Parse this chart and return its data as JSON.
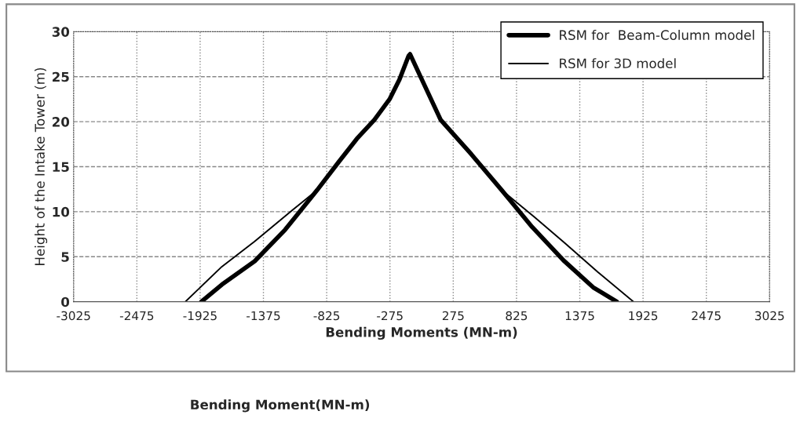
{
  "chart_data": {
    "type": "line",
    "xlabel": "Bending Moments (MN-m)",
    "ylabel": "Height of the Intake Tower (m)",
    "annotations": [
      "Bending Moment(MN-m)"
    ],
    "xlim": [
      -3025,
      3025
    ],
    "xticks": [
      -3025,
      -2475,
      -1925,
      -1375,
      -825,
      -275,
      275,
      825,
      1375,
      1925,
      2475,
      3025
    ],
    "ylim": [
      0,
      30
    ],
    "yticks": [
      0,
      5,
      10,
      15,
      20,
      25,
      30
    ],
    "grid": true,
    "legend": "top right",
    "marker": "none",
    "line_style": "solid",
    "series": [
      {
        "name": "RSM for  Beam-Column model",
        "color": "#000000",
        "x": [
          -1915,
          -1736,
          -1451,
          -1186,
          -908,
          -722,
          -563,
          -411,
          -278,
          -192,
          -113,
          -100,
          -13,
          166,
          431,
          696,
          961,
          1233,
          1491,
          1697
        ],
        "values": [
          0,
          1.9,
          4.5,
          8.0,
          12.4,
          15.5,
          18.1,
          20.2,
          22.5,
          24.7,
          27.3,
          27.5,
          25.1,
          20.2,
          16.4,
          12.4,
          8.3,
          4.6,
          1.6,
          0
        ]
      },
      {
        "name": "RSM for 3D model",
        "color": "#000000",
        "x": [
          -2054,
          -1736,
          -1451,
          -1120,
          -908,
          -722,
          -563,
          -411,
          -278,
          -192,
          -113,
          -100,
          -13,
          166,
          431,
          696,
          981,
          1246,
          1531,
          1842
        ],
        "values": [
          0,
          3.9,
          6.7,
          10.2,
          12.4,
          15.5,
          18.1,
          20.2,
          22.5,
          24.7,
          27.3,
          27.5,
          25.1,
          20.2,
          16.4,
          12.4,
          9.4,
          6.5,
          3.3,
          0
        ]
      }
    ]
  }
}
